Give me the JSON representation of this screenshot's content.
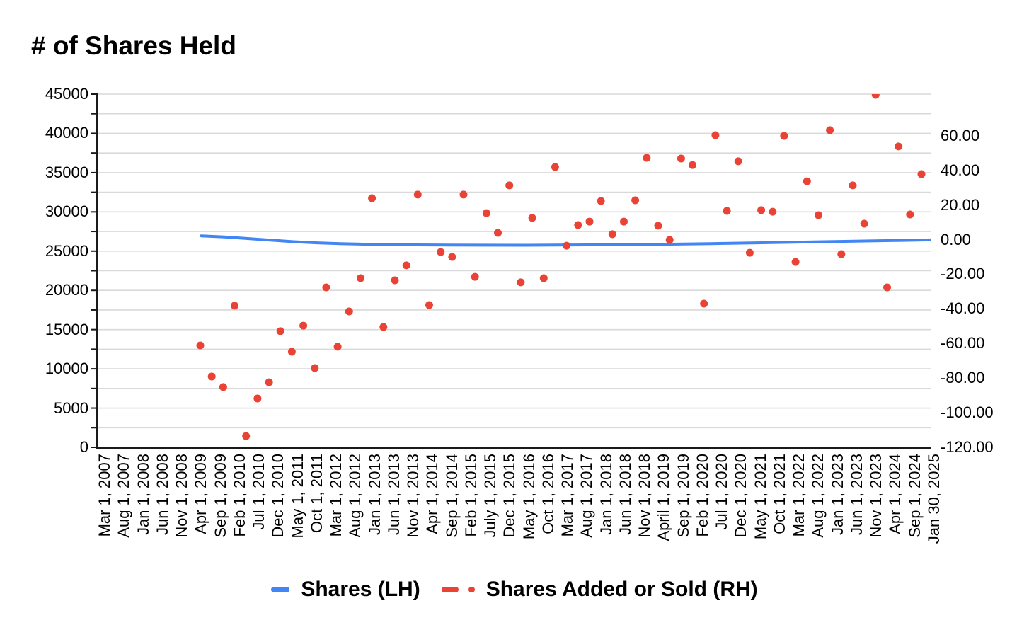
{
  "title": "# of Shares Held",
  "legend": {
    "items": [
      {
        "label": "Shares (LH)",
        "color": "#4285f4",
        "marker": "line"
      },
      {
        "label": "Shares Added or Sold (RH)",
        "color": "#ea4335",
        "marker": "dashed-line-with-dot"
      }
    ]
  },
  "colors": {
    "line_series": "#4285f4",
    "scatter_series": "#ea4335",
    "gridline": "#d9d9d9",
    "axis": "#1a1a1a",
    "text": "#000000"
  },
  "chart_data": {
    "type": "line+scatter",
    "title": "# of Shares Held",
    "grid": "horizontal-only",
    "legend_position": "bottom",
    "left_axis": {
      "side": "left",
      "range": [
        0,
        45000
      ],
      "label_step": 5000,
      "gridline_step": 2500,
      "tick_labels": [
        "45000",
        "40000",
        "35000",
        "30000",
        "25000",
        "20000",
        "15000",
        "10000",
        "5000",
        "0"
      ]
    },
    "right_axis": {
      "side": "right",
      "range": [
        -120,
        84
      ],
      "tick_labels": [
        "60.00",
        "40.00",
        "20.00",
        "0.00",
        "-20.00",
        "-40.00",
        "-60.00",
        "-80.00",
        "-100.00",
        "-120.00"
      ],
      "tick_values": [
        60,
        40,
        20,
        0,
        -20,
        -40,
        -60,
        -80,
        -100,
        -120
      ]
    },
    "x_axis": {
      "start": "Mar 1, 2007",
      "end": "Jan 30, 2025",
      "months_per_tick": 5,
      "tick_labels": [
        "Mar 1, 2007",
        "Aug 1, 2007",
        "Jan 1, 2008",
        "Jun 1, 2008",
        "Nov 1, 2008",
        "Apr 1, 2009",
        "Sep 1, 2009",
        "Feb 1, 2010",
        "Jul 1, 2010",
        "Dec 1, 2010",
        "May 1, 2011",
        "Oct 1, 2011",
        "Mar 1, 2012",
        "Aug 1, 2012",
        "Jan 1, 2013",
        "Jun 1, 2013",
        "Nov 1, 2013",
        "Apr 1, 2014",
        "Sep 1, 2014",
        "Feb 1, 2015",
        "July 1, 2015",
        "Dec 1, 2015",
        "May 1, 2016",
        "Oct 1, 2016",
        "Mar 1, 2017",
        "Aug 1, 2017",
        "Jan 1, 2018",
        "Jun 1, 2018",
        "Nov 1, 2018",
        "April 1, 2019",
        "Sep 1, 2019",
        "Feb 1, 2020",
        "Jul 1, 2020",
        "Dec 1, 2020",
        "May 1, 2021",
        "Oct 1, 2021",
        "Mar 1, 2022",
        "Aug 1, 2022",
        "Jan 1, 2023",
        "Jun 1, 2023",
        "Nov 1, 2023",
        "Apr 1, 2024",
        "Sep 1, 2024",
        "Jan 30, 2025"
      ]
    },
    "series": [
      {
        "name": "Shares (LH)",
        "axis": "left",
        "type": "line",
        "color": "#4285f4",
        "points": [
          {
            "date": "Apr 2009",
            "m": 25,
            "value": 26950
          },
          {
            "date": "Oct 2009",
            "m": 31,
            "value": 26800
          },
          {
            "date": "Apr 2010",
            "m": 37,
            "value": 26600
          },
          {
            "date": "Oct 2010",
            "m": 43,
            "value": 26400
          },
          {
            "date": "Apr 2011",
            "m": 49,
            "value": 26200
          },
          {
            "date": "Oct 2011",
            "m": 55,
            "value": 26050
          },
          {
            "date": "Apr 2012",
            "m": 61,
            "value": 25950
          },
          {
            "date": "Oct 2012",
            "m": 67,
            "value": 25880
          },
          {
            "date": "Apr 2013",
            "m": 73,
            "value": 25820
          },
          {
            "date": "Apr 2014",
            "m": 85,
            "value": 25780
          },
          {
            "date": "Apr 2015",
            "m": 97,
            "value": 25760
          },
          {
            "date": "Apr 2016",
            "m": 109,
            "value": 25750
          },
          {
            "date": "Apr 2017",
            "m": 121,
            "value": 25780
          },
          {
            "date": "Apr 2018",
            "m": 133,
            "value": 25820
          },
          {
            "date": "Apr 2019",
            "m": 145,
            "value": 25870
          },
          {
            "date": "Apr 2020",
            "m": 157,
            "value": 25950
          },
          {
            "date": "Apr 2021",
            "m": 169,
            "value": 26050
          },
          {
            "date": "Apr 2022",
            "m": 181,
            "value": 26150
          },
          {
            "date": "Apr 2023",
            "m": 193,
            "value": 26250
          },
          {
            "date": "Apr 2024",
            "m": 205,
            "value": 26350
          },
          {
            "date": "Jan 2025",
            "m": 214,
            "value": 26430
          }
        ]
      },
      {
        "name": "Shares Added or Sold (RH)",
        "axis": "right",
        "type": "scatter",
        "color": "#ea4335",
        "points": [
          {
            "date": "Apr 2009",
            "value": -61.1
          },
          {
            "date": "Jul 2009",
            "value": -79.1
          },
          {
            "date": "Oct 2009",
            "value": -85.2
          },
          {
            "date": "Jan 2010",
            "value": -38.2
          },
          {
            "date": "Apr 2010",
            "value": -113.5
          },
          {
            "date": "Jul 2010",
            "value": -91.8
          },
          {
            "date": "Oct 2010",
            "value": -82.4
          },
          {
            "date": "Jan 2011",
            "value": -52.9
          },
          {
            "date": "Apr 2011",
            "value": -64.8
          },
          {
            "date": "Jul 2011",
            "value": -49.7
          },
          {
            "date": "Oct 2011",
            "value": -74.2
          },
          {
            "date": "Jan 2012",
            "value": -27.6
          },
          {
            "date": "Apr 2012",
            "value": -61.9
          },
          {
            "date": "Jul 2012",
            "value": -41.5
          },
          {
            "date": "Oct 2012",
            "value": -22.3
          },
          {
            "date": "Jan 2013",
            "value": 23.9
          },
          {
            "date": "Apr 2013",
            "value": -50.5
          },
          {
            "date": "Jul 2013",
            "value": -23.5
          },
          {
            "date": "Oct 2013",
            "value": -14.9
          },
          {
            "date": "Jan 2014",
            "value": 26.0
          },
          {
            "date": "Apr 2014",
            "value": -37.8
          },
          {
            "date": "Jul 2014",
            "value": -7.2
          },
          {
            "date": "Oct 2014",
            "value": -10.0
          },
          {
            "date": "Jan 2015",
            "value": 26.0
          },
          {
            "date": "Apr 2015",
            "value": -21.5
          },
          {
            "date": "Jul 2015",
            "value": 15.3
          },
          {
            "date": "Oct 2015",
            "value": 3.9
          },
          {
            "date": "Jan 2016",
            "value": 31.3
          },
          {
            "date": "Apr 2016",
            "value": -24.7
          },
          {
            "date": "Jul 2016",
            "value": 12.5
          },
          {
            "date": "Oct 2016",
            "value": -22.3
          },
          {
            "date": "Jan 2017",
            "value": 41.9
          },
          {
            "date": "Apr 2017",
            "value": -3.5
          },
          {
            "date": "Jul 2017",
            "value": 8.4
          },
          {
            "date": "Oct 2017",
            "value": 10.4
          },
          {
            "date": "Jan 2018",
            "value": 22.3
          },
          {
            "date": "Apr 2018",
            "value": 3.1
          },
          {
            "date": "Jul 2018",
            "value": 10.4
          },
          {
            "date": "Oct 2018",
            "value": 22.7
          },
          {
            "date": "Jan 2019",
            "value": 47.2
          },
          {
            "date": "Apr 2019",
            "value": 8.0
          },
          {
            "date": "Jul 2019",
            "value": -0.2
          },
          {
            "date": "Oct 2019",
            "value": 46.8
          },
          {
            "date": "Jan 2020",
            "value": 43.1
          },
          {
            "date": "Apr 2020",
            "value": -37.0
          },
          {
            "date": "Jul 2020",
            "value": 60.3
          },
          {
            "date": "Oct 2020",
            "value": 16.6
          },
          {
            "date": "Jan 2021",
            "value": 45.2
          },
          {
            "date": "Apr 2021",
            "value": -7.6
          },
          {
            "date": "Jul 2021",
            "value": 17.0
          },
          {
            "date": "Oct 2021",
            "value": 16.1
          },
          {
            "date": "Jan 2022",
            "value": 59.9
          },
          {
            "date": "Apr 2022",
            "value": -12.9
          },
          {
            "date": "Jul 2022",
            "value": 33.7
          },
          {
            "date": "Oct 2022",
            "value": 14.1
          },
          {
            "date": "Jan 2023",
            "value": 63.2
          },
          {
            "date": "Apr 2023",
            "value": -8.4
          },
          {
            "date": "Jul 2023",
            "value": 31.3
          },
          {
            "date": "Oct 2023",
            "value": 9.2
          },
          {
            "date": "Jan 2024",
            "value": 83.6
          },
          {
            "date": "Apr 2024",
            "value": -27.6
          },
          {
            "date": "Jul 2024",
            "value": 53.8
          },
          {
            "date": "Oct 2024",
            "value": 14.5
          },
          {
            "date": "Jan 2025",
            "value": 37.8
          }
        ]
      }
    ]
  }
}
